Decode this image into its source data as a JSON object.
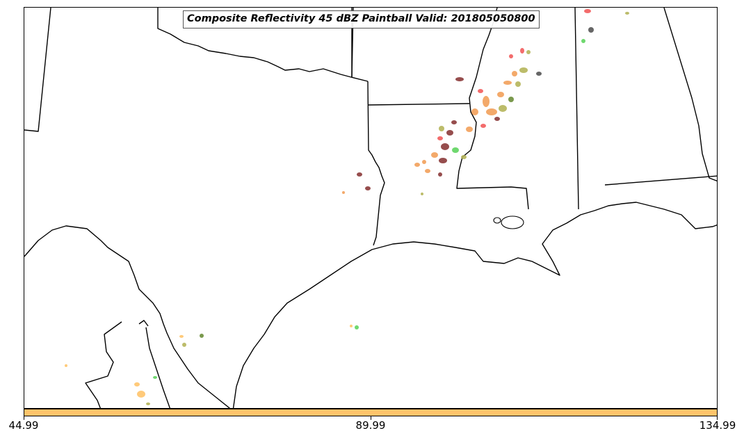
{
  "map": {
    "title": "Composite Reflectivity 45 dBZ Paintball Valid: 201805050800",
    "projection_region": "US Gulf Coast / South-Central US",
    "paintball_colors": [
      "#f25c5c",
      "#f2a05a",
      "#b5b55a",
      "#8b3a3a",
      "#5fd45f",
      "#ffc46b",
      "#6b8e3a",
      "#555555"
    ]
  },
  "colorbar": {
    "color": "#ffc46b",
    "ticks": [
      "44.99",
      "89.99",
      "134.99"
    ]
  }
}
